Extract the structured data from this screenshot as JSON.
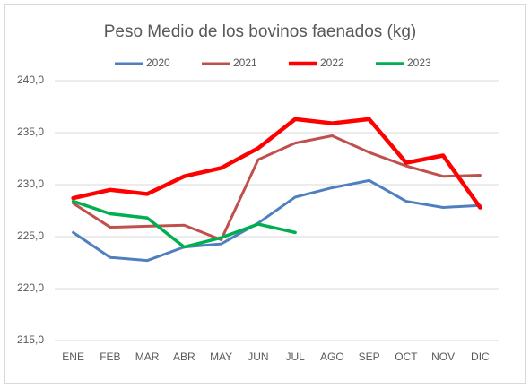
{
  "chart_data": {
    "type": "line",
    "title": "Peso Medio de los bovinos faenados (kg)",
    "categories": [
      "ENE",
      "FEB",
      "MAR",
      "ABR",
      "MAY",
      "JUN",
      "JUL",
      "AGO",
      "SEP",
      "OCT",
      "NOV",
      "DIC"
    ],
    "series": [
      {
        "name": "2020",
        "color": "#4f7fbf",
        "width": 3,
        "values": [
          225.4,
          223.0,
          222.7,
          224.0,
          224.3,
          226.3,
          228.8,
          229.7,
          230.4,
          228.4,
          227.8,
          228.0
        ]
      },
      {
        "name": "2021",
        "color": "#c0504d",
        "width": 3,
        "values": [
          228.2,
          225.9,
          226.0,
          226.1,
          224.7,
          232.4,
          234.0,
          234.7,
          233.1,
          231.8,
          230.8,
          230.9
        ]
      },
      {
        "name": "2022",
        "color": "#ff0000",
        "width": 4.5,
        "values": [
          228.7,
          229.5,
          229.1,
          230.8,
          231.6,
          233.5,
          236.3,
          235.9,
          236.3,
          232.1,
          232.8,
          227.8
        ]
      },
      {
        "name": "2023",
        "color": "#00b050",
        "width": 3.5,
        "values": [
          228.4,
          227.2,
          226.8,
          224.0,
          224.9,
          226.2,
          225.4,
          null,
          null,
          null,
          null,
          null
        ]
      }
    ],
    "ylim": [
      215,
      240
    ],
    "yticks": [
      {
        "value": 215,
        "label": "215,0"
      },
      {
        "value": 220,
        "label": "220,0"
      },
      {
        "value": 225,
        "label": "225,0"
      },
      {
        "value": 230,
        "label": "230,0"
      },
      {
        "value": 235,
        "label": "235,0"
      },
      {
        "value": 240,
        "label": "240,0"
      }
    ],
    "grid": true,
    "legend": "top"
  }
}
